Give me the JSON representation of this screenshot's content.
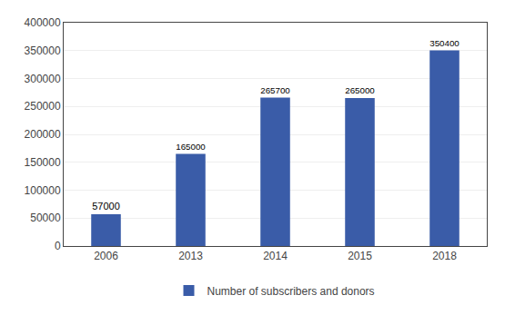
{
  "chart_data": {
    "type": "bar",
    "categories": [
      "2006",
      "2013",
      "2014",
      "2015",
      "2018"
    ],
    "series": [
      {
        "name": "Number of subscribers and donors",
        "color": "#3A5CA8",
        "values": [
          57000,
          165000,
          265700,
          265000,
          350400
        ]
      }
    ],
    "ylim": [
      0,
      400000
    ],
    "yticks": [
      0,
      50000,
      100000,
      150000,
      200000,
      250000,
      300000,
      350000,
      400000
    ],
    "grid": true,
    "legend": "bottom",
    "data_labels": true
  }
}
